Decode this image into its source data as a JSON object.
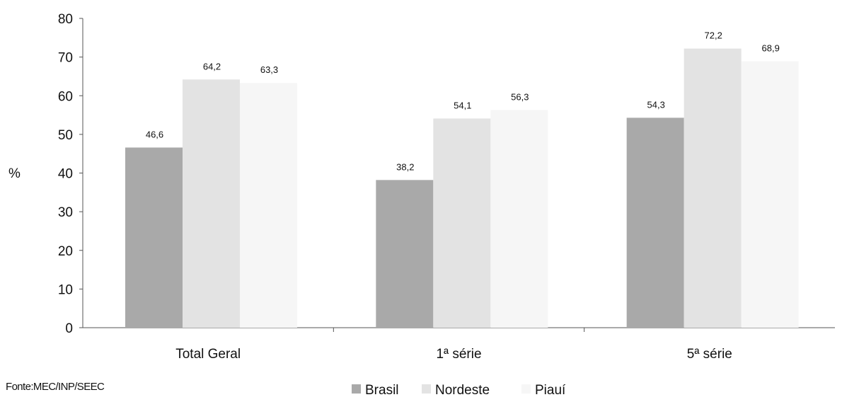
{
  "chart_data": {
    "type": "bar",
    "categories": [
      "Total Geral",
      "1ª série",
      "5ª série"
    ],
    "series": [
      {
        "name": "Brasil",
        "values": [
          46.6,
          38.2,
          54.3
        ],
        "labels": [
          "46,6",
          "38,2",
          "54,3"
        ],
        "color": "#a9a9a9"
      },
      {
        "name": "Nordeste",
        "values": [
          64.2,
          54.1,
          72.2
        ],
        "labels": [
          "64,2",
          "54,1",
          "72,2"
        ],
        "color": "#e3e3e3"
      },
      {
        "name": "Piauí",
        "values": [
          63.3,
          56.3,
          68.9
        ],
        "labels": [
          "63,3",
          "56,3",
          "68,9"
        ],
        "color": "#f6f6f6"
      }
    ],
    "ylabel": "%",
    "ylim": [
      0,
      80
    ],
    "yticks": [
      "0",
      "10",
      "20",
      "30",
      "40",
      "50",
      "60",
      "70",
      "80"
    ],
    "grid": false,
    "legend_position": "bottom-center"
  },
  "source": "Fonte:MEC/INP/SEEC"
}
